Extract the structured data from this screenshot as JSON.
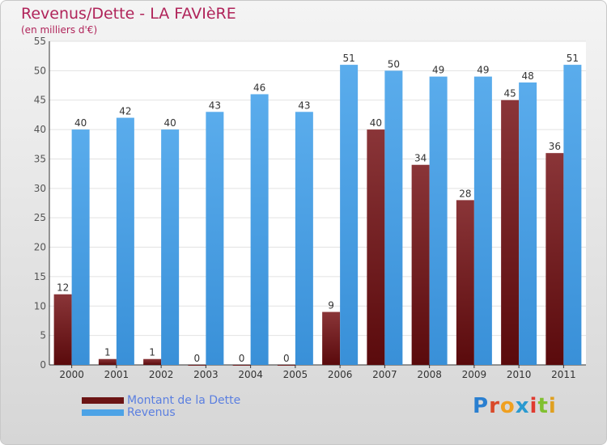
{
  "header": {
    "title": "Revenus/Dette - LA FAVIèRE",
    "subtitle": "(en milliers d'€)"
  },
  "chart_data": {
    "type": "bar",
    "categories": [
      "2000",
      "2001",
      "2002",
      "2003",
      "2004",
      "2005",
      "2006",
      "2007",
      "2008",
      "2009",
      "2010",
      "2011"
    ],
    "series": [
      {
        "name": "Montant de la Dette",
        "values": [
          12,
          1,
          1,
          0,
          0,
          0,
          9,
          40,
          34,
          28,
          45,
          36
        ],
        "color": "#7a1f22"
      },
      {
        "name": "Revenus",
        "values": [
          40,
          42,
          40,
          43,
          46,
          43,
          51,
          50,
          49,
          49,
          48,
          51
        ],
        "color": "#4da3e6"
      }
    ],
    "ylim": [
      0,
      55
    ],
    "yticks": [
      0,
      5,
      10,
      15,
      20,
      25,
      30,
      35,
      40,
      45,
      50,
      55
    ],
    "grid": true,
    "legend_position": "bottom-left"
  },
  "legend": {
    "items": [
      {
        "label": "Montant de la Dette",
        "color": "#6b1414"
      },
      {
        "label": "Revenus",
        "color": "#4da3e6"
      }
    ]
  },
  "logo": {
    "letters": [
      "P",
      "r",
      "o",
      "x",
      "i",
      "t",
      "i"
    ],
    "colors": [
      "#2a7fd0",
      "#d94a2a",
      "#f0a020",
      "#2a9ad0",
      "#e03a30",
      "#80c030",
      "#e0a020"
    ]
  }
}
